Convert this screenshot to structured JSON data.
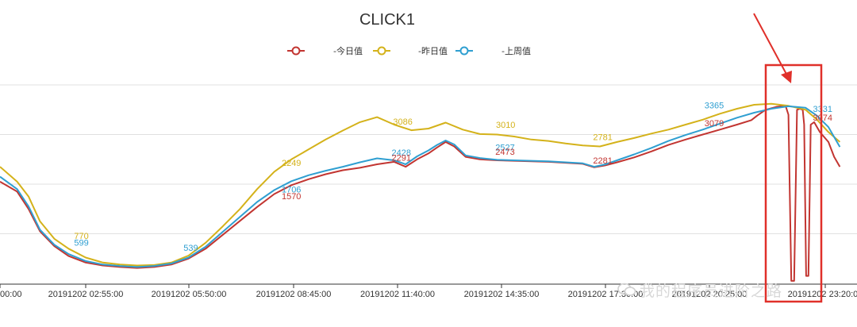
{
  "chart_data": {
    "type": "line",
    "title": "CLICK1",
    "legend": {
      "placement": "top-center",
      "labels": [
        "-今日值",
        "-昨日值",
        "-上周值"
      ]
    },
    "x_ticks": [
      "00:00",
      "20191202 02:55:00",
      "20191202 05:50:00",
      "20191202 08:45:00",
      "20191202 11:40:00",
      "20191202 14:35:00",
      "20191202 17:30:00",
      "20191202 20:25:00",
      "20191202 23:20:00"
    ],
    "ylim": [
      0,
      4000
    ],
    "grid": true,
    "series": [
      {
        "color": "#c23531",
        "points": [
          [
            0,
            2050
          ],
          [
            60,
            1850
          ],
          [
            100,
            1500
          ],
          [
            140,
            1050
          ],
          [
            190,
            750
          ],
          [
            240,
            550
          ],
          [
            300,
            420
          ],
          [
            360,
            360
          ],
          [
            420,
            330
          ],
          [
            480,
            310
          ],
          [
            540,
            330
          ],
          [
            600,
            380
          ],
          [
            660,
            500
          ],
          [
            720,
            700
          ],
          [
            780,
            980
          ],
          [
            840,
            1260
          ],
          [
            900,
            1540
          ],
          [
            960,
            1800
          ],
          [
            1020,
            1980
          ],
          [
            1080,
            2100
          ],
          [
            1140,
            2200
          ],
          [
            1200,
            2280
          ],
          [
            1260,
            2330
          ],
          [
            1320,
            2400
          ],
          [
            1380,
            2450
          ],
          [
            1420,
            2350
          ],
          [
            1460,
            2500
          ],
          [
            1500,
            2620
          ],
          [
            1530,
            2740
          ],
          [
            1560,
            2850
          ],
          [
            1590,
            2760
          ],
          [
            1630,
            2550
          ],
          [
            1680,
            2500
          ],
          [
            1740,
            2480
          ],
          [
            1800,
            2470
          ],
          [
            1860,
            2460
          ],
          [
            1920,
            2450
          ],
          [
            1980,
            2430
          ],
          [
            2040,
            2410
          ],
          [
            2080,
            2340
          ],
          [
            2120,
            2380
          ],
          [
            2160,
            2440
          ],
          [
            2220,
            2540
          ],
          [
            2280,
            2660
          ],
          [
            2340,
            2790
          ],
          [
            2400,
            2900
          ],
          [
            2460,
            3000
          ],
          [
            2520,
            3100
          ],
          [
            2580,
            3200
          ],
          [
            2630,
            3290
          ],
          [
            2650,
            3380
          ],
          [
            2680,
            3500
          ],
          [
            2720,
            3560
          ],
          [
            2750,
            3580
          ],
          [
            2760,
            3400
          ],
          [
            2770,
            50
          ],
          [
            2780,
            50
          ],
          [
            2790,
            3500
          ],
          [
            2800,
            3520
          ],
          [
            2810,
            3500
          ],
          [
            2815,
            3200
          ],
          [
            2822,
            150
          ],
          [
            2830,
            150
          ],
          [
            2838,
            3200
          ],
          [
            2850,
            3250
          ],
          [
            2870,
            3050
          ],
          [
            2900,
            2850
          ],
          [
            2920,
            2550
          ],
          [
            2940,
            2350
          ]
        ]
      },
      {
        "color": "#d4b21a",
        "points": [
          [
            0,
            2350
          ],
          [
            60,
            2050
          ],
          [
            100,
            1750
          ],
          [
            140,
            1250
          ],
          [
            190,
            900
          ],
          [
            240,
            700
          ],
          [
            300,
            520
          ],
          [
            360,
            420
          ],
          [
            420,
            380
          ],
          [
            480,
            360
          ],
          [
            540,
            370
          ],
          [
            600,
            420
          ],
          [
            660,
            560
          ],
          [
            720,
            820
          ],
          [
            780,
            1150
          ],
          [
            840,
            1500
          ],
          [
            900,
            1900
          ],
          [
            960,
            2250
          ],
          [
            1020,
            2500
          ],
          [
            1080,
            2700
          ],
          [
            1140,
            2900
          ],
          [
            1200,
            3080
          ],
          [
            1260,
            3250
          ],
          [
            1320,
            3350
          ],
          [
            1380,
            3200
          ],
          [
            1440,
            3086
          ],
          [
            1500,
            3120
          ],
          [
            1560,
            3240
          ],
          [
            1620,
            3100
          ],
          [
            1680,
            3010
          ],
          [
            1740,
            3000
          ],
          [
            1800,
            2960
          ],
          [
            1860,
            2900
          ],
          [
            1920,
            2870
          ],
          [
            1980,
            2820
          ],
          [
            2040,
            2781
          ],
          [
            2100,
            2760
          ],
          [
            2160,
            2850
          ],
          [
            2220,
            2930
          ],
          [
            2280,
            3020
          ],
          [
            2340,
            3100
          ],
          [
            2400,
            3200
          ],
          [
            2460,
            3300
          ],
          [
            2520,
            3420
          ],
          [
            2580,
            3520
          ],
          [
            2640,
            3600
          ],
          [
            2700,
            3620
          ],
          [
            2760,
            3580
          ],
          [
            2820,
            3500
          ],
          [
            2860,
            3300
          ],
          [
            2900,
            3050
          ],
          [
            2940,
            2850
          ]
        ]
      },
      {
        "color": "#2f9fd1",
        "points": [
          [
            0,
            2150
          ],
          [
            60,
            1900
          ],
          [
            100,
            1550
          ],
          [
            140,
            1080
          ],
          [
            190,
            780
          ],
          [
            240,
            590
          ],
          [
            300,
            450
          ],
          [
            360,
            380
          ],
          [
            420,
            350
          ],
          [
            480,
            330
          ],
          [
            540,
            350
          ],
          [
            600,
            400
          ],
          [
            660,
            520
          ],
          [
            720,
            740
          ],
          [
            780,
            1040
          ],
          [
            840,
            1340
          ],
          [
            900,
            1640
          ],
          [
            960,
            1880
          ],
          [
            1020,
            2060
          ],
          [
            1080,
            2180
          ],
          [
            1140,
            2270
          ],
          [
            1200,
            2350
          ],
          [
            1260,
            2440
          ],
          [
            1320,
            2520
          ],
          [
            1380,
            2480
          ],
          [
            1420,
            2400
          ],
          [
            1460,
            2560
          ],
          [
            1500,
            2680
          ],
          [
            1530,
            2790
          ],
          [
            1560,
            2880
          ],
          [
            1590,
            2800
          ],
          [
            1630,
            2580
          ],
          [
            1680,
            2527
          ],
          [
            1740,
            2490
          ],
          [
            1800,
            2480
          ],
          [
            1860,
            2470
          ],
          [
            1920,
            2460
          ],
          [
            1980,
            2440
          ],
          [
            2040,
            2420
          ],
          [
            2080,
            2350
          ],
          [
            2120,
            2400
          ],
          [
            2160,
            2480
          ],
          [
            2220,
            2600
          ],
          [
            2280,
            2730
          ],
          [
            2340,
            2870
          ],
          [
            2400,
            2990
          ],
          [
            2460,
            3100
          ],
          [
            2520,
            3220
          ],
          [
            2580,
            3340
          ],
          [
            2640,
            3440
          ],
          [
            2700,
            3520
          ],
          [
            2760,
            3570
          ],
          [
            2820,
            3540
          ],
          [
            2860,
            3380
          ],
          [
            2900,
            3150
          ],
          [
            2940,
            2750
          ]
        ]
      }
    ],
    "data_labels": [
      {
        "text": "770",
        "x": 285,
        "y": 900,
        "series": 1
      },
      {
        "text": "599",
        "x": 285,
        "y": 760,
        "series": 2
      },
      {
        "text": "539",
        "x": 668,
        "y": 660,
        "series": 2
      },
      {
        "text": "2249",
        "x": 1020,
        "y": 2370,
        "series": 1
      },
      {
        "text": "1706",
        "x": 1020,
        "y": 1830,
        "series": 2
      },
      {
        "text": "1570",
        "x": 1020,
        "y": 1700,
        "series": 0
      },
      {
        "text": "3086",
        "x": 1410,
        "y": 3200,
        "series": 1
      },
      {
        "text": "2428",
        "x": 1405,
        "y": 2580,
        "series": 2
      },
      {
        "text": "2291",
        "x": 1405,
        "y": 2470,
        "series": 0
      },
      {
        "text": "3010",
        "x": 1770,
        "y": 3140,
        "series": 1
      },
      {
        "text": "2527",
        "x": 1768,
        "y": 2680,
        "series": 2
      },
      {
        "text": "2473",
        "x": 1768,
        "y": 2590,
        "series": 0
      },
      {
        "text": "2781",
        "x": 2110,
        "y": 2890,
        "series": 1
      },
      {
        "text": "2281",
        "x": 2110,
        "y": 2420,
        "series": 0
      },
      {
        "text": "3365",
        "x": 2500,
        "y": 3530,
        "series": 2
      },
      {
        "text": "3079",
        "x": 2500,
        "y": 3170,
        "series": 0
      },
      {
        "text": "3331",
        "x": 2880,
        "y": 3460,
        "series": 2
      },
      {
        "text": "3074",
        "x": 2880,
        "y": 3280,
        "series": 0
      }
    ]
  },
  "watermark": {
    "text": "我的程序员进阶之路"
  }
}
